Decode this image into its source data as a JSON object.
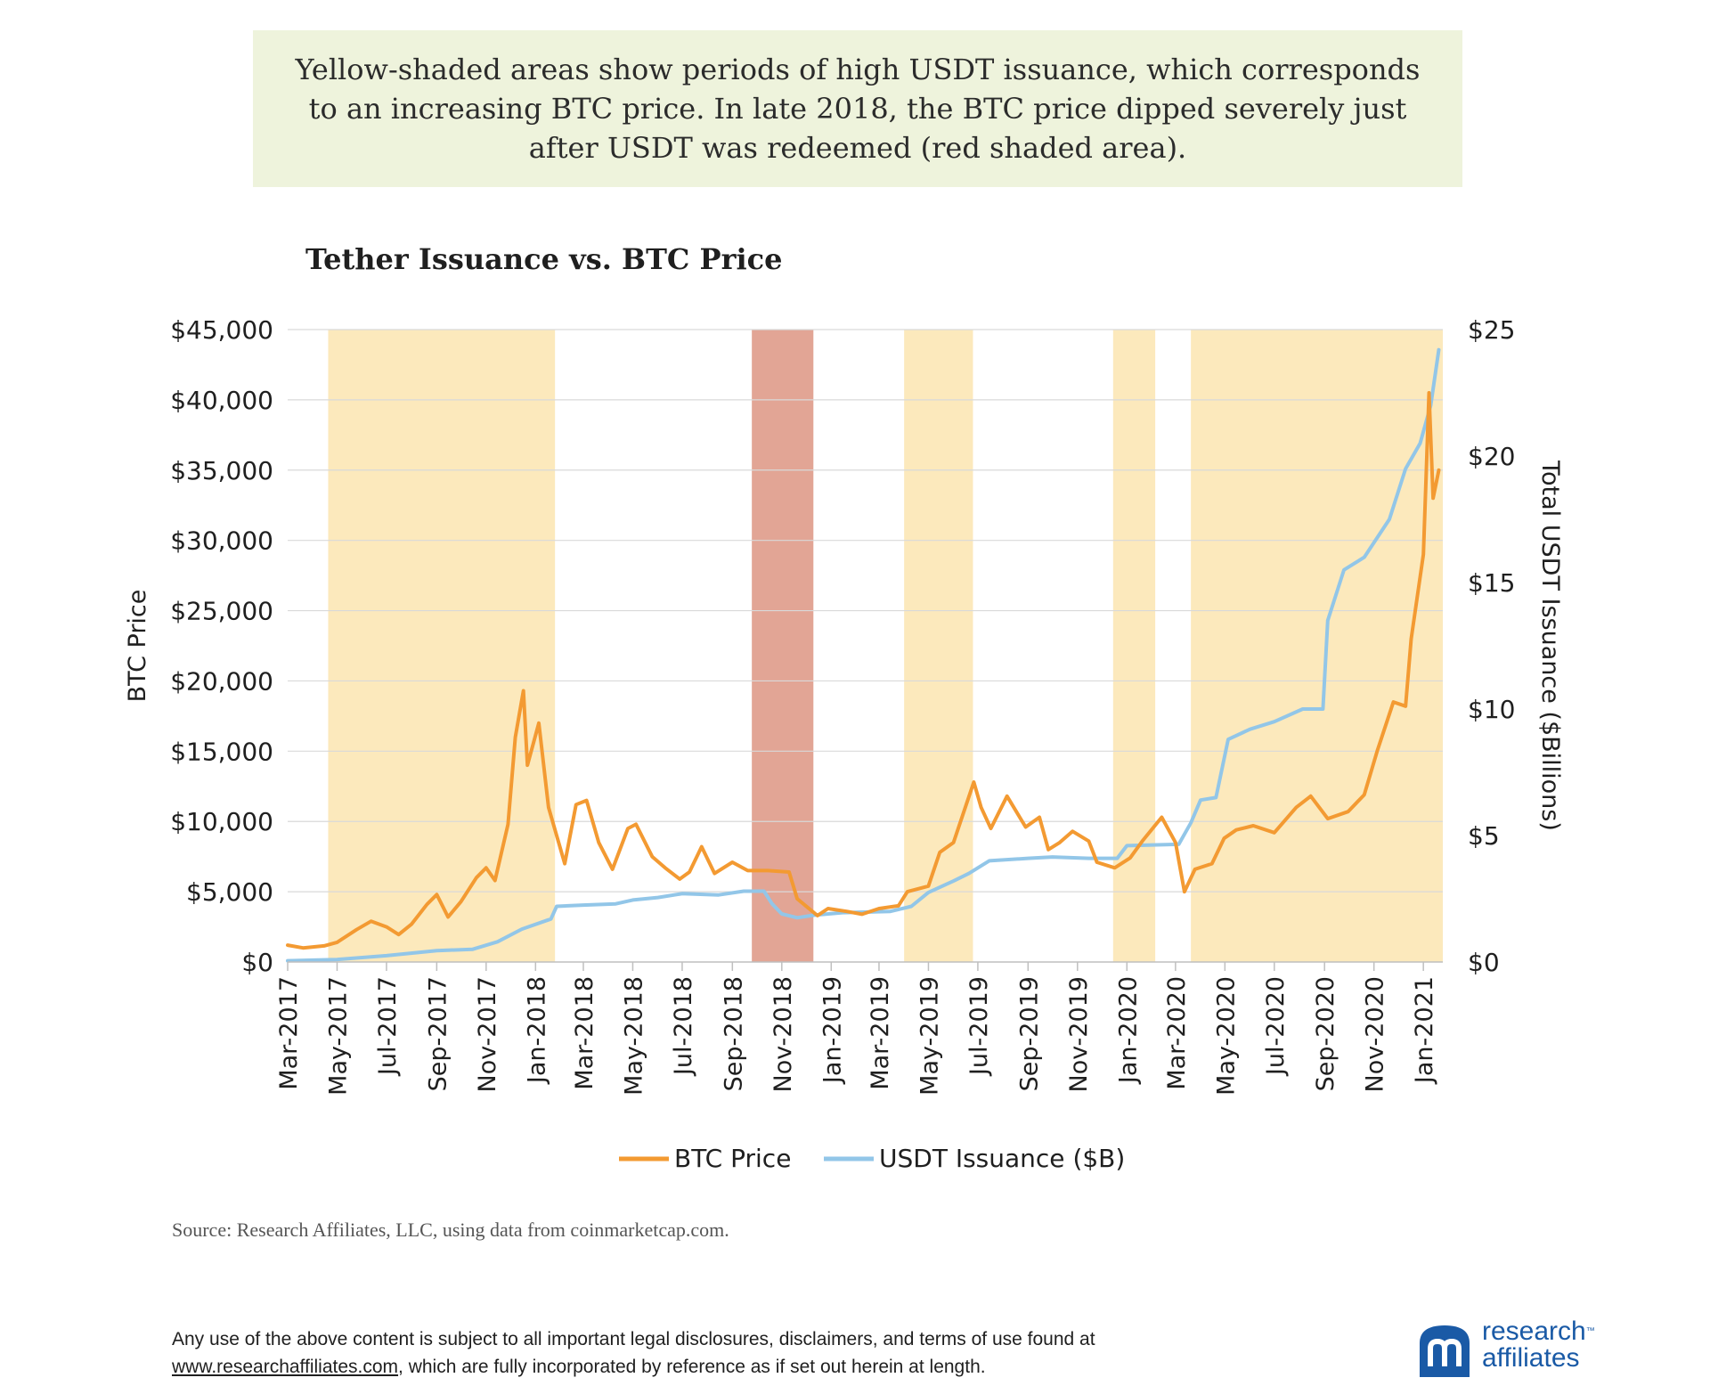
{
  "callout_text": "Yellow-shaded areas show periods of high USDT issuance, which corresponds to an increasing BTC price. In late 2018, the BTC price dipped severely just after USDT was redeemed (red shaded area).",
  "chart_title": "Tether Issuance vs. BTC Price",
  "source_text": "Source: Research Affiliates, LLC, using data from coinmarketcap.com.",
  "disclaimer": {
    "line1": "Any use of the above content is subject to all important legal disclosures, disclaimers, and terms of use found at",
    "link": "www.researchaffiliates.com",
    "line2_rest": ", which are fully incorporated by reference as if set out herein at length."
  },
  "logo": {
    "line1": "research",
    "trademark": "™",
    "line2": "affiliates",
    "color": "#1a5aa6"
  },
  "colors": {
    "btc": "#f39a32",
    "usdt": "#92c6e8",
    "yellow_shade": "#fce5b0",
    "red_shade": "#e0a08f",
    "grid": "#d9d9d9"
  },
  "chart_data": {
    "type": "line",
    "title": "Tether Issuance vs. BTC Price",
    "x_start": "2017-03-01",
    "x_end": "2021-01-25",
    "xlabel": "",
    "ylabel_left": "BTC Price",
    "ylabel_right": "Total USDT Issuance ($Billions)",
    "y_left_lim": [
      0,
      45000
    ],
    "y_right_lim": [
      0,
      25
    ],
    "y_left_ticks": [
      "$0",
      "$5,000",
      "$10,000",
      "$15,000",
      "$20,000",
      "$25,000",
      "$30,000",
      "$35,000",
      "$40,000",
      "$45,000"
    ],
    "y_right_ticks": [
      "$0",
      "$5",
      "$10",
      "$15",
      "$20",
      "$25"
    ],
    "x_tick_labels": [
      "Mar-2017",
      "May-2017",
      "Jul-2017",
      "Sep-2017",
      "Nov-2017",
      "Jan-2018",
      "Mar-2018",
      "May-2018",
      "Jul-2018",
      "Sep-2018",
      "Nov-2018",
      "Jan-2019",
      "Mar-2019",
      "May-2019",
      "Jul-2019",
      "Sep-2019",
      "Nov-2019",
      "Jan-2020",
      "Mar-2020",
      "May-2020",
      "Jul-2020",
      "Sep-2020",
      "Nov-2020",
      "Jan-2021"
    ],
    "x_tick_dates": [
      "2017-03-01",
      "2017-05-01",
      "2017-07-01",
      "2017-09-01",
      "2017-11-01",
      "2018-01-01",
      "2018-03-01",
      "2018-05-01",
      "2018-07-01",
      "2018-09-01",
      "2018-11-01",
      "2019-01-01",
      "2019-03-01",
      "2019-05-01",
      "2019-07-01",
      "2019-09-01",
      "2019-11-01",
      "2020-01-01",
      "2020-03-01",
      "2020-05-01",
      "2020-07-01",
      "2020-09-01",
      "2020-11-01",
      "2021-01-01"
    ],
    "shaded_regions": [
      {
        "start": "2017-04-20",
        "end": "2018-01-25",
        "color": "yellow"
      },
      {
        "start": "2018-09-25",
        "end": "2018-12-10",
        "color": "red"
      },
      {
        "start": "2019-04-01",
        "end": "2019-06-25",
        "color": "yellow"
      },
      {
        "start": "2019-12-15",
        "end": "2020-02-05",
        "color": "yellow"
      },
      {
        "start": "2020-03-20",
        "end": "2021-01-25",
        "color": "yellow"
      }
    ],
    "series": [
      {
        "name": "BTC Price",
        "axis": "left",
        "color": "#f39a32",
        "points": [
          [
            "2017-03-01",
            1200
          ],
          [
            "2017-03-20",
            1000
          ],
          [
            "2017-04-15",
            1150
          ],
          [
            "2017-05-01",
            1400
          ],
          [
            "2017-05-25",
            2300
          ],
          [
            "2017-06-12",
            2900
          ],
          [
            "2017-07-01",
            2500
          ],
          [
            "2017-07-16",
            1950
          ],
          [
            "2017-08-01",
            2700
          ],
          [
            "2017-08-20",
            4100
          ],
          [
            "2017-09-01",
            4800
          ],
          [
            "2017-09-15",
            3200
          ],
          [
            "2017-10-01",
            4300
          ],
          [
            "2017-10-20",
            6000
          ],
          [
            "2017-11-01",
            6700
          ],
          [
            "2017-11-12",
            5800
          ],
          [
            "2017-11-28",
            9800
          ],
          [
            "2017-12-07",
            16000
          ],
          [
            "2017-12-17",
            19300
          ],
          [
            "2017-12-22",
            14000
          ],
          [
            "2018-01-05",
            17000
          ],
          [
            "2018-01-17",
            11000
          ],
          [
            "2018-02-06",
            7000
          ],
          [
            "2018-02-20",
            11200
          ],
          [
            "2018-03-05",
            11500
          ],
          [
            "2018-03-20",
            8500
          ],
          [
            "2018-04-06",
            6600
          ],
          [
            "2018-04-25",
            9500
          ],
          [
            "2018-05-05",
            9800
          ],
          [
            "2018-05-25",
            7500
          ],
          [
            "2018-06-10",
            6700
          ],
          [
            "2018-06-28",
            5900
          ],
          [
            "2018-07-10",
            6400
          ],
          [
            "2018-07-25",
            8200
          ],
          [
            "2018-08-10",
            6300
          ],
          [
            "2018-09-01",
            7100
          ],
          [
            "2018-09-20",
            6500
          ],
          [
            "2018-10-15",
            6500
          ],
          [
            "2018-11-10",
            6400
          ],
          [
            "2018-11-20",
            4500
          ],
          [
            "2018-12-15",
            3300
          ],
          [
            "2018-12-28",
            3800
          ],
          [
            "2019-01-20",
            3600
          ],
          [
            "2019-02-08",
            3400
          ],
          [
            "2019-03-01",
            3800
          ],
          [
            "2019-03-25",
            4000
          ],
          [
            "2019-04-05",
            5000
          ],
          [
            "2019-05-01",
            5400
          ],
          [
            "2019-05-15",
            7800
          ],
          [
            "2019-06-01",
            8500
          ],
          [
            "2019-06-26",
            12800
          ],
          [
            "2019-07-05",
            11000
          ],
          [
            "2019-07-17",
            9500
          ],
          [
            "2019-08-06",
            11800
          ],
          [
            "2019-08-29",
            9600
          ],
          [
            "2019-09-15",
            10300
          ],
          [
            "2019-09-26",
            8000
          ],
          [
            "2019-10-10",
            8500
          ],
          [
            "2019-10-26",
            9300
          ],
          [
            "2019-11-15",
            8600
          ],
          [
            "2019-11-25",
            7100
          ],
          [
            "2019-12-17",
            6700
          ],
          [
            "2020-01-05",
            7400
          ],
          [
            "2020-01-20",
            8600
          ],
          [
            "2020-02-13",
            10300
          ],
          [
            "2020-03-01",
            8500
          ],
          [
            "2020-03-12",
            5000
          ],
          [
            "2020-03-25",
            6600
          ],
          [
            "2020-04-15",
            7000
          ],
          [
            "2020-04-30",
            8800
          ],
          [
            "2020-05-15",
            9400
          ],
          [
            "2020-06-05",
            9700
          ],
          [
            "2020-07-01",
            9200
          ],
          [
            "2020-07-28",
            11000
          ],
          [
            "2020-08-15",
            11800
          ],
          [
            "2020-09-05",
            10200
          ],
          [
            "2020-09-30",
            10700
          ],
          [
            "2020-10-20",
            11900
          ],
          [
            "2020-11-05",
            15000
          ],
          [
            "2020-11-25",
            18500
          ],
          [
            "2020-12-10",
            18200
          ],
          [
            "2020-12-17",
            23000
          ],
          [
            "2021-01-01",
            29000
          ],
          [
            "2021-01-08",
            40500
          ],
          [
            "2021-01-13",
            33000
          ],
          [
            "2021-01-20",
            35000
          ]
        ]
      },
      {
        "name": "USDT Issuance ($B)",
        "axis": "right",
        "color": "#92c6e8",
        "points": [
          [
            "2017-03-01",
            0.05
          ],
          [
            "2017-05-01",
            0.1
          ],
          [
            "2017-07-01",
            0.25
          ],
          [
            "2017-09-01",
            0.45
          ],
          [
            "2017-10-15",
            0.5
          ],
          [
            "2017-11-15",
            0.8
          ],
          [
            "2017-12-15",
            1.3
          ],
          [
            "2018-01-20",
            1.7
          ],
          [
            "2018-01-27",
            2.2
          ],
          [
            "2018-03-01",
            2.25
          ],
          [
            "2018-04-10",
            2.3
          ],
          [
            "2018-05-01",
            2.45
          ],
          [
            "2018-06-01",
            2.55
          ],
          [
            "2018-07-01",
            2.7
          ],
          [
            "2018-08-15",
            2.65
          ],
          [
            "2018-09-15",
            2.8
          ],
          [
            "2018-10-10",
            2.8
          ],
          [
            "2018-10-20",
            2.3
          ],
          [
            "2018-11-01",
            1.9
          ],
          [
            "2018-11-20",
            1.75
          ],
          [
            "2018-12-10",
            1.85
          ],
          [
            "2019-01-15",
            1.95
          ],
          [
            "2019-03-15",
            2.0
          ],
          [
            "2019-04-10",
            2.2
          ],
          [
            "2019-05-01",
            2.75
          ],
          [
            "2019-06-01",
            3.2
          ],
          [
            "2019-06-20",
            3.5
          ],
          [
            "2019-07-15",
            4.0
          ],
          [
            "2019-09-01",
            4.1
          ],
          [
            "2019-10-01",
            4.15
          ],
          [
            "2019-11-15",
            4.1
          ],
          [
            "2019-12-20",
            4.1
          ],
          [
            "2020-01-01",
            4.6
          ],
          [
            "2020-03-05",
            4.65
          ],
          [
            "2020-03-20",
            5.5
          ],
          [
            "2020-04-01",
            6.4
          ],
          [
            "2020-04-20",
            6.5
          ],
          [
            "2020-05-05",
            8.8
          ],
          [
            "2020-06-01",
            9.2
          ],
          [
            "2020-07-01",
            9.5
          ],
          [
            "2020-08-05",
            10.0
          ],
          [
            "2020-08-30",
            10.0
          ],
          [
            "2020-09-05",
            13.5
          ],
          [
            "2020-09-25",
            15.5
          ],
          [
            "2020-10-20",
            16.0
          ],
          [
            "2020-11-20",
            17.5
          ],
          [
            "2020-12-10",
            19.5
          ],
          [
            "2020-12-28",
            20.5
          ],
          [
            "2021-01-10",
            22.0
          ],
          [
            "2021-01-20",
            24.2
          ]
        ]
      }
    ],
    "legend": [
      "BTC Price",
      "USDT Issuance ($B)"
    ],
    "legend_position": "bottom"
  }
}
